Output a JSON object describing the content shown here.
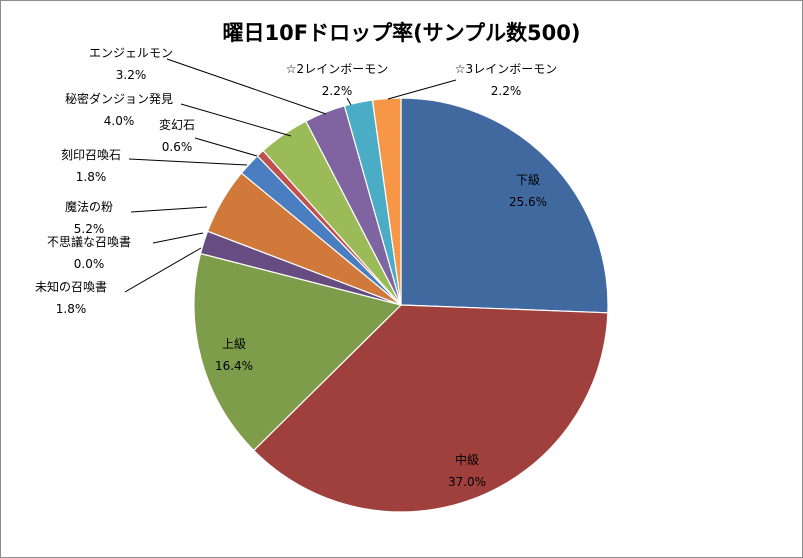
{
  "chart_data": {
    "type": "pie",
    "title": "曜日10Fドロップ率(サンプル数500)",
    "slices": [
      {
        "name": "下級",
        "value": 25.6,
        "label": "25.6%",
        "color": "#4069A0"
      },
      {
        "name": "中級",
        "value": 37.0,
        "label": "37.0%",
        "color": "#A0403D"
      },
      {
        "name": "上級",
        "value": 16.4,
        "label": "16.4%",
        "color": "#7E9D4A"
      },
      {
        "name": "未知の召喚書",
        "value": 1.8,
        "label": "1.8%",
        "color": "#674C82"
      },
      {
        "name": "不思議な召喚書",
        "value": 0.0,
        "label": "0.0%",
        "color": "#3A97AE"
      },
      {
        "name": "魔法の粉",
        "value": 5.2,
        "label": "5.2%",
        "color": "#D0793A"
      },
      {
        "name": "刻印召喚石",
        "value": 1.8,
        "label": "1.8%",
        "color": "#4A7EC0"
      },
      {
        "name": "変幻石",
        "value": 0.6,
        "label": "0.6%",
        "color": "#C0504D"
      },
      {
        "name": "秘密ダンジョン発見",
        "value": 4.0,
        "label": "4.0%",
        "color": "#9BBB59"
      },
      {
        "name": "エンジェルモン",
        "value": 3.2,
        "label": "3.2%",
        "color": "#8064A2"
      },
      {
        "name": "☆2レインボーモン",
        "value": 2.2,
        "label": "2.2%",
        "color": "#4BACC6"
      },
      {
        "name": "☆3レインボーモン",
        "value": 2.2,
        "label": "2.2%",
        "color": "#F79646"
      }
    ]
  }
}
